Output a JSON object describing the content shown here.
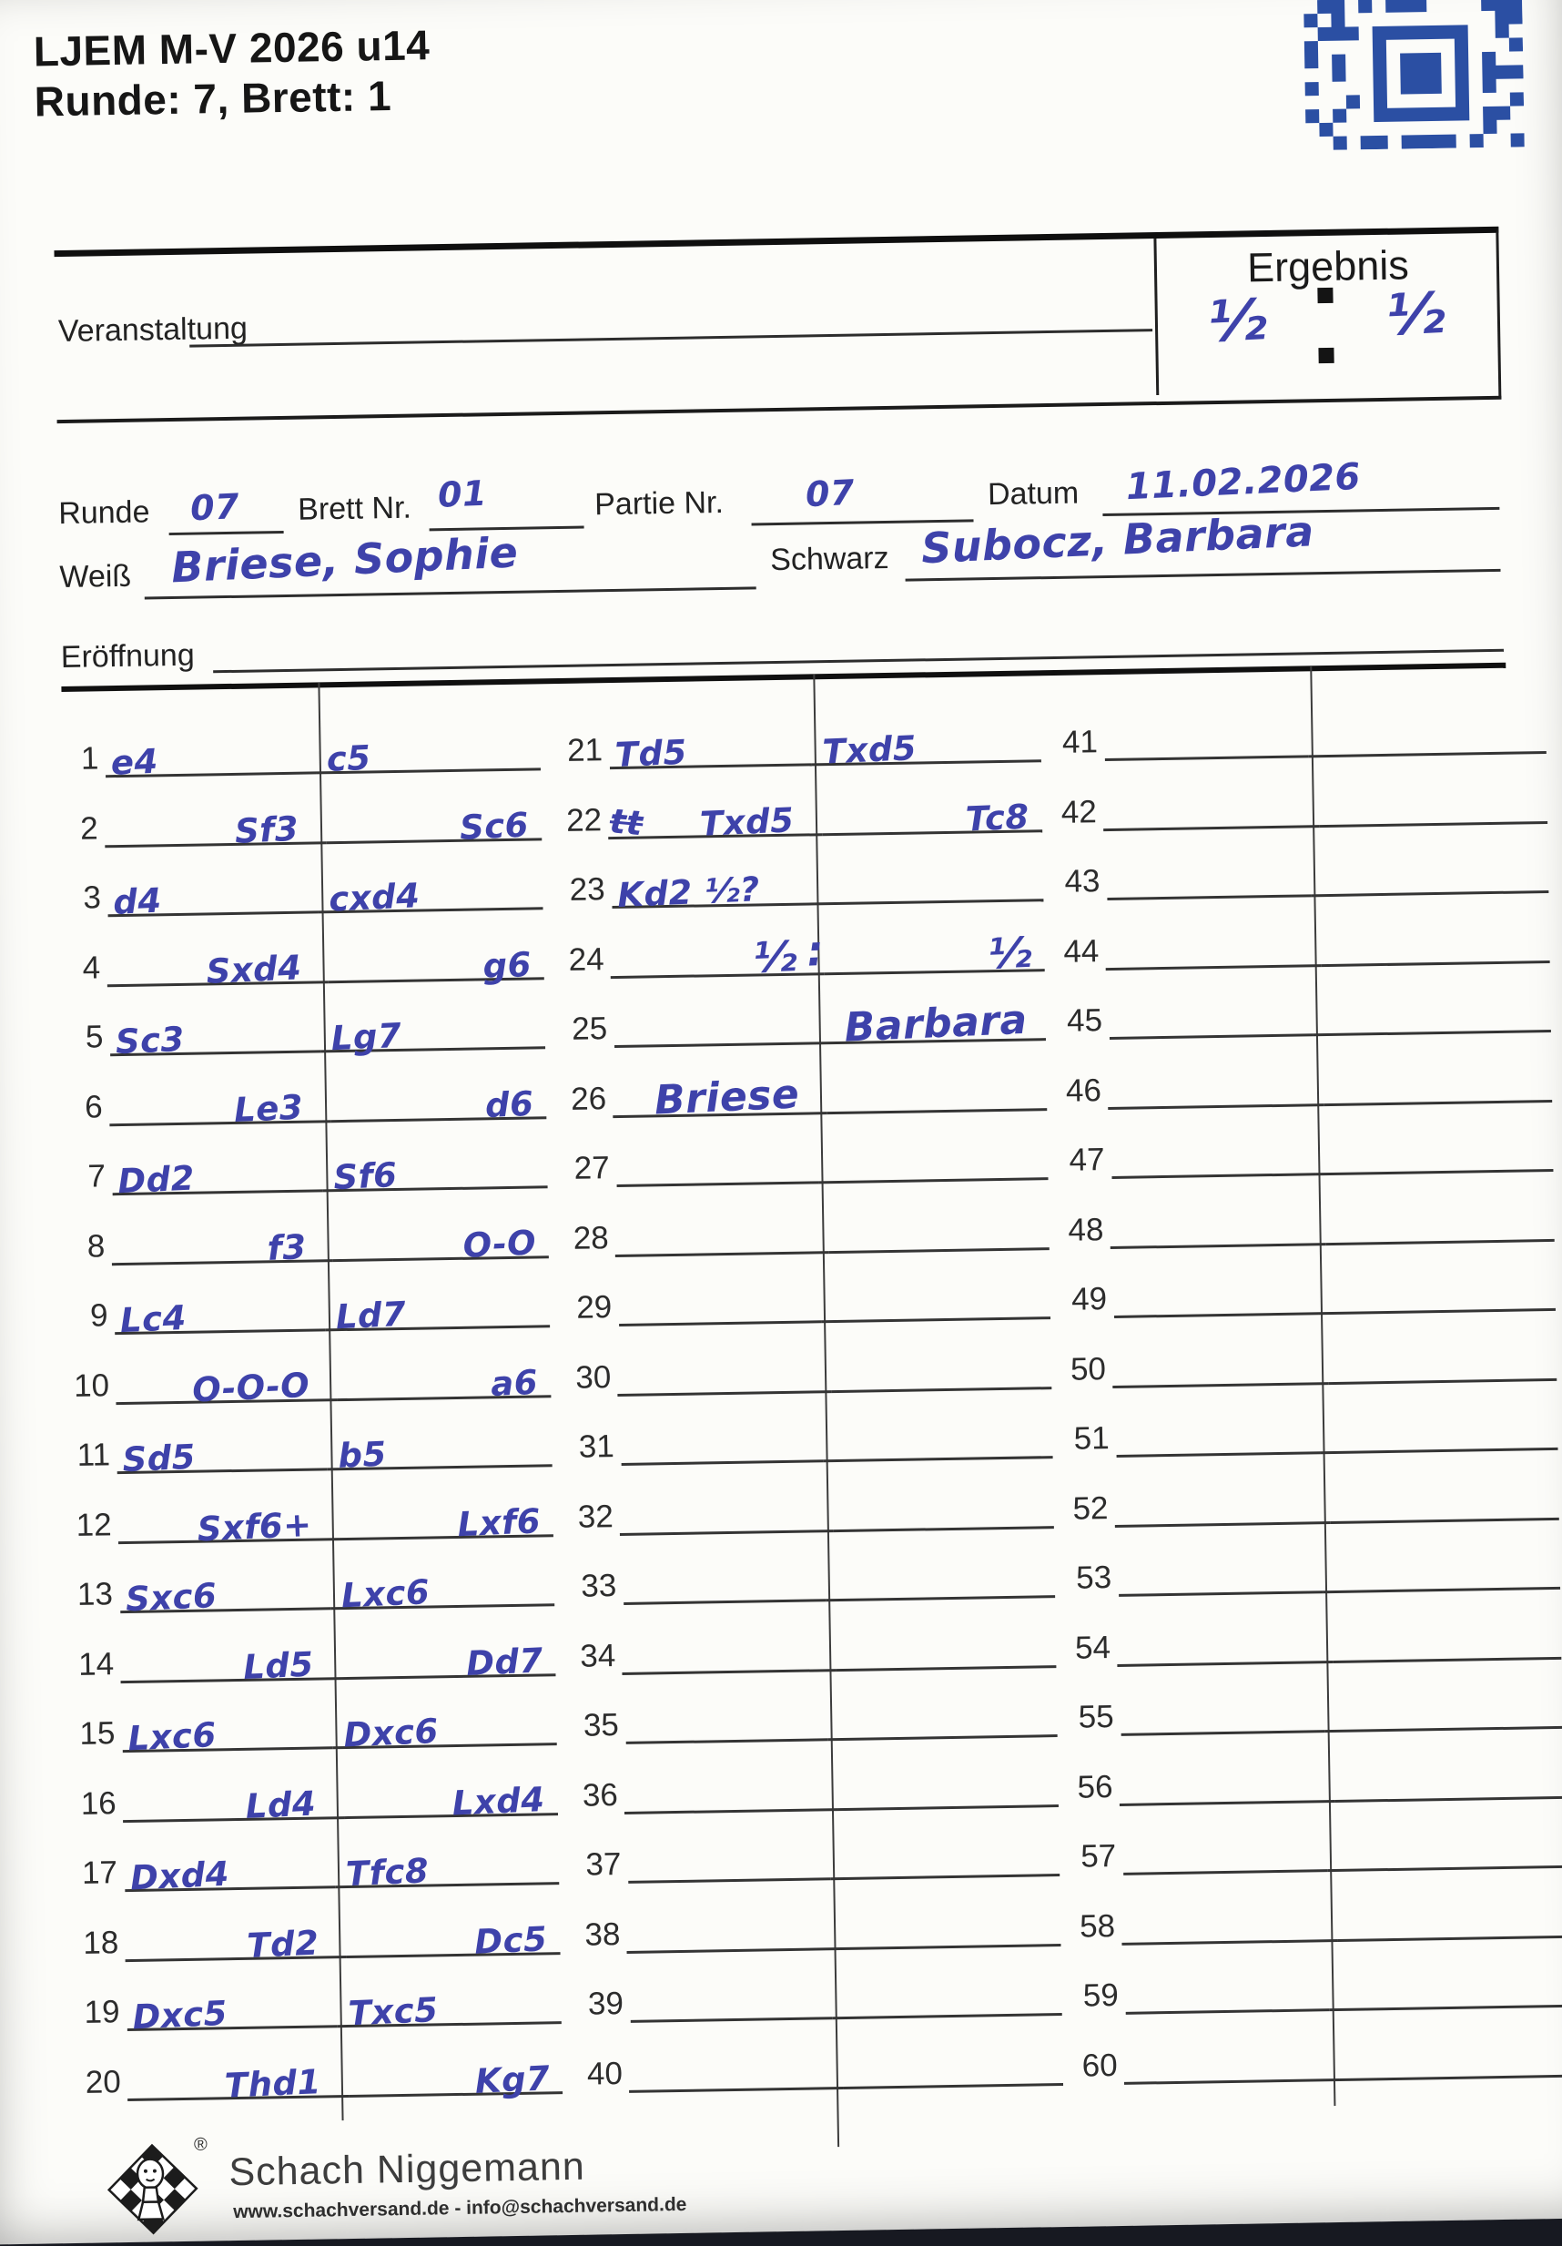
{
  "page": {
    "title_line1": "LJEM M-V 2026 u14",
    "title_line2": "Runde: 7, Brett: 1"
  },
  "result_box": {
    "label": "Ergebnis",
    "white": "½",
    "black": "½"
  },
  "form": {
    "veranstaltung": {
      "label": "Veranstaltung",
      "value": ""
    },
    "runde": {
      "label": "Runde",
      "value": "07"
    },
    "brett": {
      "label": "Brett Nr.",
      "value": "01"
    },
    "partie": {
      "label": "Partie Nr.",
      "value": "07"
    },
    "datum": {
      "label": "Datum",
      "value": "11.02.2026"
    },
    "weiss": {
      "label": "Weiß",
      "value": "Briese, Sophie"
    },
    "schwarz": {
      "label": "Schwarz",
      "value": "Subocz, Barbara"
    },
    "eroeffnung": {
      "label": "Eröffnung",
      "value": ""
    }
  },
  "scoresheet": {
    "columns": [
      {
        "rows": [
          {
            "n": 1,
            "w": "e4",
            "b": "c5"
          },
          {
            "n": 2,
            "w": "Sf3",
            "b": "Sc6"
          },
          {
            "n": 3,
            "w": "d4",
            "b": "cxd4"
          },
          {
            "n": 4,
            "w": "Sxd4",
            "b": "g6"
          },
          {
            "n": 5,
            "w": "Sc3",
            "b": "Lg7"
          },
          {
            "n": 6,
            "w": "Le3",
            "b": "d6"
          },
          {
            "n": 7,
            "w": "Dd2",
            "b": "Sf6"
          },
          {
            "n": 8,
            "w": "f3",
            "b": "O-O"
          },
          {
            "n": 9,
            "w": "Lc4",
            "b": "Ld7"
          },
          {
            "n": 10,
            "w": "O-O-O",
            "b": "a6"
          },
          {
            "n": 11,
            "w": "Sd5",
            "b": "b5"
          },
          {
            "n": 12,
            "w": "Sxf6+",
            "b": "Lxf6"
          },
          {
            "n": 13,
            "w": "Sxc6",
            "b": "Lxc6"
          },
          {
            "n": 14,
            "w": "Ld5",
            "b": "Dd7"
          },
          {
            "n": 15,
            "w": "Lxc6",
            "b": "Dxc6"
          },
          {
            "n": 16,
            "w": "Ld4",
            "b": "Lxd4"
          },
          {
            "n": 17,
            "w": "Dxd4",
            "b": "Tfc8"
          },
          {
            "n": 18,
            "w": "Td2",
            "b": "Dc5"
          },
          {
            "n": 19,
            "w": "Dxc5",
            "b": "Txc5"
          },
          {
            "n": 20,
            "w": "Thd1",
            "b": "Kg7"
          }
        ]
      },
      {
        "rows": [
          {
            "n": 21,
            "w": "Td5",
            "b": "Txd5"
          },
          {
            "n": 22,
            "scratch": "tt",
            "w": "Txd5",
            "b": "Tc8"
          },
          {
            "n": 23,
            "w": "Kd2 ½?",
            "b": ""
          },
          {
            "n": 24,
            "w": "½",
            "mid": ":",
            "b": "½"
          },
          {
            "n": 25,
            "w": "",
            "b": "Barbara",
            "sig": "b"
          },
          {
            "n": 26,
            "w": "Briese",
            "b": "",
            "sig": "w"
          },
          {
            "n": 27,
            "w": "",
            "b": ""
          },
          {
            "n": 28,
            "w": "",
            "b": ""
          },
          {
            "n": 29,
            "w": "",
            "b": ""
          },
          {
            "n": 30,
            "w": "",
            "b": ""
          },
          {
            "n": 31,
            "w": "",
            "b": ""
          },
          {
            "n": 32,
            "w": "",
            "b": ""
          },
          {
            "n": 33,
            "w": "",
            "b": ""
          },
          {
            "n": 34,
            "w": "",
            "b": ""
          },
          {
            "n": 35,
            "w": "",
            "b": ""
          },
          {
            "n": 36,
            "w": "",
            "b": ""
          },
          {
            "n": 37,
            "w": "",
            "b": ""
          },
          {
            "n": 38,
            "w": "",
            "b": ""
          },
          {
            "n": 39,
            "w": "",
            "b": ""
          },
          {
            "n": 40,
            "w": "",
            "b": ""
          }
        ]
      },
      {
        "rows": [
          {
            "n": 41,
            "w": "",
            "b": ""
          },
          {
            "n": 42,
            "w": "",
            "b": ""
          },
          {
            "n": 43,
            "w": "",
            "b": ""
          },
          {
            "n": 44,
            "w": "",
            "b": ""
          },
          {
            "n": 45,
            "w": "",
            "b": ""
          },
          {
            "n": 46,
            "w": "",
            "b": ""
          },
          {
            "n": 47,
            "w": "",
            "b": ""
          },
          {
            "n": 48,
            "w": "",
            "b": ""
          },
          {
            "n": 49,
            "w": "",
            "b": ""
          },
          {
            "n": 50,
            "w": "",
            "b": ""
          },
          {
            "n": 51,
            "w": "",
            "b": ""
          },
          {
            "n": 52,
            "w": "",
            "b": ""
          },
          {
            "n": 53,
            "w": "",
            "b": ""
          },
          {
            "n": 54,
            "w": "",
            "b": ""
          },
          {
            "n": 55,
            "w": "",
            "b": ""
          },
          {
            "n": 56,
            "w": "",
            "b": ""
          },
          {
            "n": 57,
            "w": "",
            "b": ""
          },
          {
            "n": 58,
            "w": "",
            "b": ""
          },
          {
            "n": 59,
            "w": "",
            "b": ""
          },
          {
            "n": 60,
            "w": "",
            "b": ""
          }
        ]
      }
    ]
  },
  "footer": {
    "brand": "Schach Niggemann",
    "contact": "www.schachversand.de  -  info@schachversand.de",
    "registered": "®"
  },
  "icons": {
    "qr": "aztec-barcode",
    "logo": "chess-diamond-logo"
  },
  "colors": {
    "ink": "#3e42aa",
    "qr_blue": "#2b4fa3",
    "paper": "#fcfcf9"
  }
}
